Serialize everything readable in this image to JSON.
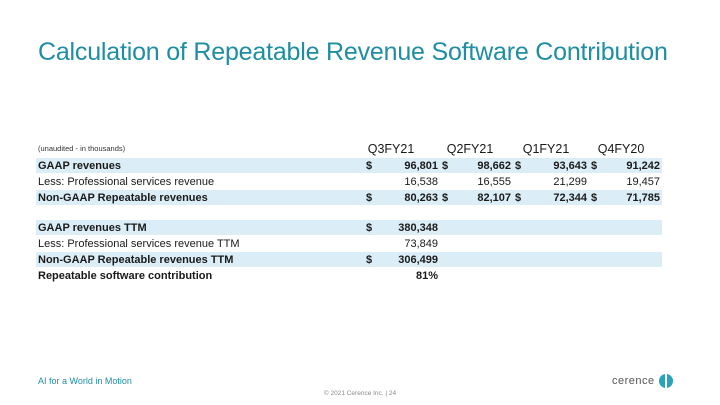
{
  "title": "Calculation of Repeatable Revenue Software Contribution",
  "table": {
    "note": "(unaudited - in thousands)",
    "columns": [
      "Q3FY21",
      "Q2FY21",
      "Q1FY21",
      "Q4FY20"
    ],
    "rows": [
      {
        "label": "GAAP revenues",
        "cells": [
          {
            "cur": "$",
            "val": "96,801"
          },
          {
            "cur": "$",
            "val": "98,662"
          },
          {
            "cur": "$",
            "val": "93,643"
          },
          {
            "cur": "$",
            "val": "91,242"
          }
        ]
      },
      {
        "label": "Less: Professional services revenue",
        "cells": [
          {
            "cur": "",
            "val": "16,538"
          },
          {
            "cur": "",
            "val": "16,555"
          },
          {
            "cur": "",
            "val": "21,299"
          },
          {
            "cur": "",
            "val": "19,457"
          }
        ]
      },
      {
        "label": "Non-GAAP Repeatable revenues",
        "cells": [
          {
            "cur": "$",
            "val": "80,263"
          },
          {
            "cur": "$",
            "val": "82,107"
          },
          {
            "cur": "$",
            "val": "72,344"
          },
          {
            "cur": "$",
            "val": "71,785"
          }
        ]
      },
      {
        "label": "GAAP revenues TTM",
        "cells": [
          {
            "cur": "$",
            "val": "380,348"
          }
        ]
      },
      {
        "label": "Less: Professional services revenue TTM",
        "cells": [
          {
            "cur": "",
            "val": "73,849"
          }
        ]
      },
      {
        "label": "Non-GAAP Repeatable revenues TTM",
        "cells": [
          {
            "cur": "$",
            "val": "306,499"
          }
        ]
      },
      {
        "label": "Repeatable software contribution",
        "cells": [
          {
            "cur": "",
            "val": "81%"
          }
        ]
      }
    ]
  },
  "footer": {
    "tagline": "AI for a World in Motion",
    "copyright": "© 2021 Cerence Inc.  |  24",
    "logo_text": "cerence"
  },
  "colors": {
    "accent": "#1f8ea3",
    "shade": "#dbeef7"
  }
}
